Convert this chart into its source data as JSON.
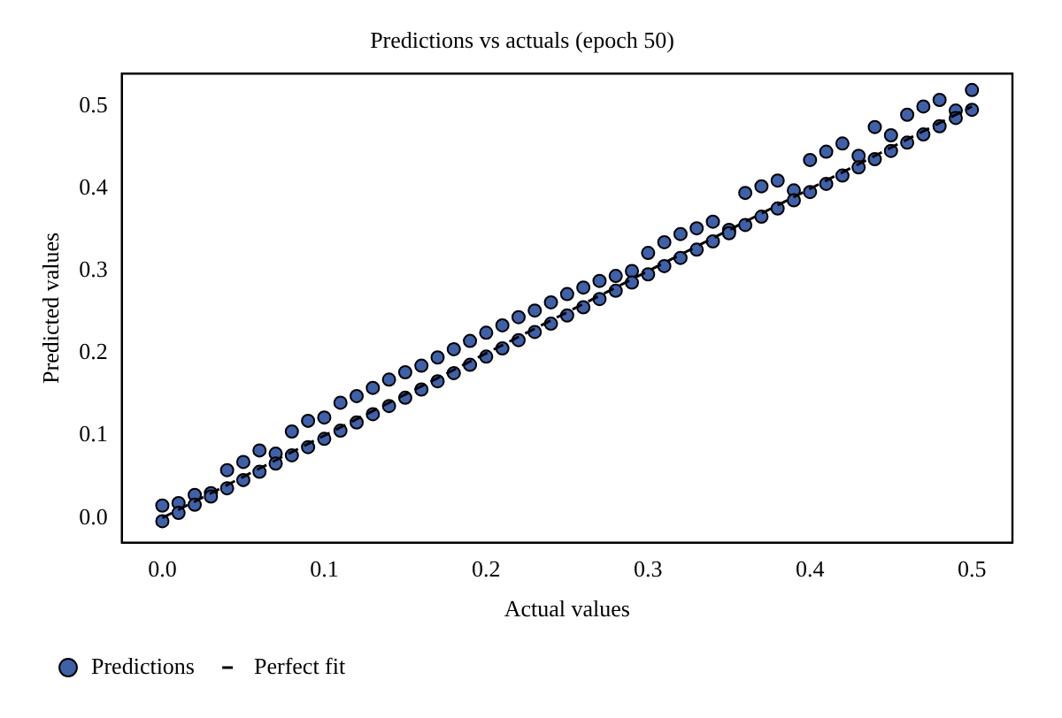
{
  "chart_data": {
    "type": "scatter",
    "title": "Predictions vs actuals (epoch 50)",
    "xlabel": "Actual values",
    "ylabel": "Predicted values",
    "xlim": [
      -0.025,
      0.525
    ],
    "xticks": [
      {
        "value": 0,
        "label": "0.0"
      },
      0.1,
      0.2,
      0.3,
      0.4,
      0.5
    ],
    "ylim": [
      -0.03,
      0.54
    ],
    "yticks": [
      {
        "value": 0,
        "label": "0.0"
      },
      0.1,
      0.2,
      0.3,
      0.4,
      0.5
    ],
    "grid": false,
    "legend": "bottom left",
    "marker": "circle",
    "series": [
      {
        "name": "Predictions",
        "color": "#4060a8",
        "x": [
          0,
          0.01,
          0.02,
          0.03,
          0.04,
          0.05,
          0.06,
          0.07,
          0.08,
          0.09,
          0.1,
          0.11,
          0.12,
          0.13,
          0.14,
          0.15,
          0.16,
          0.17,
          0.18,
          0.19,
          0.2,
          0.21,
          0.22,
          0.23,
          0.24,
          0.25,
          0.26,
          0.27,
          0.28,
          0.29,
          0.3,
          0.31,
          0.32,
          0.33,
          0.34,
          0.35,
          0.36,
          0.37,
          0.38,
          0.39,
          0.4,
          0.41,
          0.42,
          0.43,
          0.44,
          0.45,
          0.46,
          0.47,
          0.48,
          0.49,
          0.5,
          0,
          0.01,
          0.02,
          0.03,
          0.04,
          0.05,
          0.06,
          0.07,
          0.08,
          0.09,
          0.1,
          0.11,
          0.12,
          0.13,
          0.14,
          0.15,
          0.16,
          0.17,
          0.18,
          0.19,
          0.2,
          0.21,
          0.22,
          0.23,
          0.24,
          0.25,
          0.26,
          0.27,
          0.28,
          0.29,
          0.3,
          0.31,
          0.32,
          0.33,
          0.34,
          0.35,
          0.36,
          0.37,
          0.38,
          0.39,
          0.4,
          0.41,
          0.42,
          0.43,
          0.44,
          0.45,
          0.46,
          0.47,
          0.48,
          0.49,
          0.5
        ],
        "values": [
          0.015,
          0.018,
          0.028,
          0.03,
          0.058,
          0.068,
          0.082,
          0.078,
          0.105,
          0.118,
          0.122,
          0.14,
          0.148,
          0.158,
          0.168,
          0.177,
          0.185,
          0.195,
          0.205,
          0.215,
          0.225,
          0.234,
          0.244,
          0.252,
          0.262,
          0.272,
          0.28,
          0.288,
          0.294,
          0.3,
          0.322,
          0.335,
          0.345,
          0.352,
          0.36,
          0.35,
          0.395,
          0.403,
          0.41,
          0.398,
          0.435,
          0.445,
          0.455,
          0.44,
          0.475,
          0.465,
          0.49,
          0.5,
          0.508,
          0.495,
          0.52,
          -0.004,
          0.006,
          0.016,
          0.026,
          0.036,
          0.046,
          0.056,
          0.066,
          0.076,
          0.086,
          0.096,
          0.106,
          0.116,
          0.126,
          0.136,
          0.146,
          0.156,
          0.166,
          0.176,
          0.186,
          0.196,
          0.206,
          0.216,
          0.226,
          0.236,
          0.246,
          0.256,
          0.266,
          0.276,
          0.286,
          0.296,
          0.306,
          0.316,
          0.326,
          0.336,
          0.346,
          0.356,
          0.366,
          0.376,
          0.386,
          0.396,
          0.406,
          0.416,
          0.426,
          0.436,
          0.446,
          0.456,
          0.466,
          0.476,
          0.486,
          0.496
        ]
      },
      {
        "name": "Perfect fit",
        "type": "line",
        "color": "#000000",
        "line_style": "dashed",
        "marker": "none",
        "x": [
          0,
          0.5
        ],
        "values": [
          0,
          0.5
        ]
      }
    ]
  }
}
